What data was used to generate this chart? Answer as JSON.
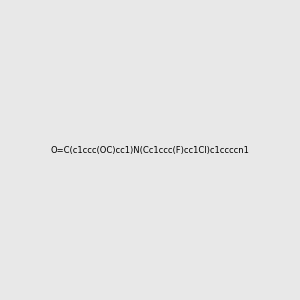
{
  "smiles": "O=C(c1ccc(OC)cc1)N(Cc1ccc(F)cc1Cl)c1ccccn1",
  "title": "",
  "bg_color": "#e8e8e8",
  "bond_color": "#000000",
  "n_color": "#0000ff",
  "o_color": "#ff0000",
  "f_color": "#00cc00",
  "cl_color": "#00aa00",
  "img_size": [
    300,
    300
  ]
}
